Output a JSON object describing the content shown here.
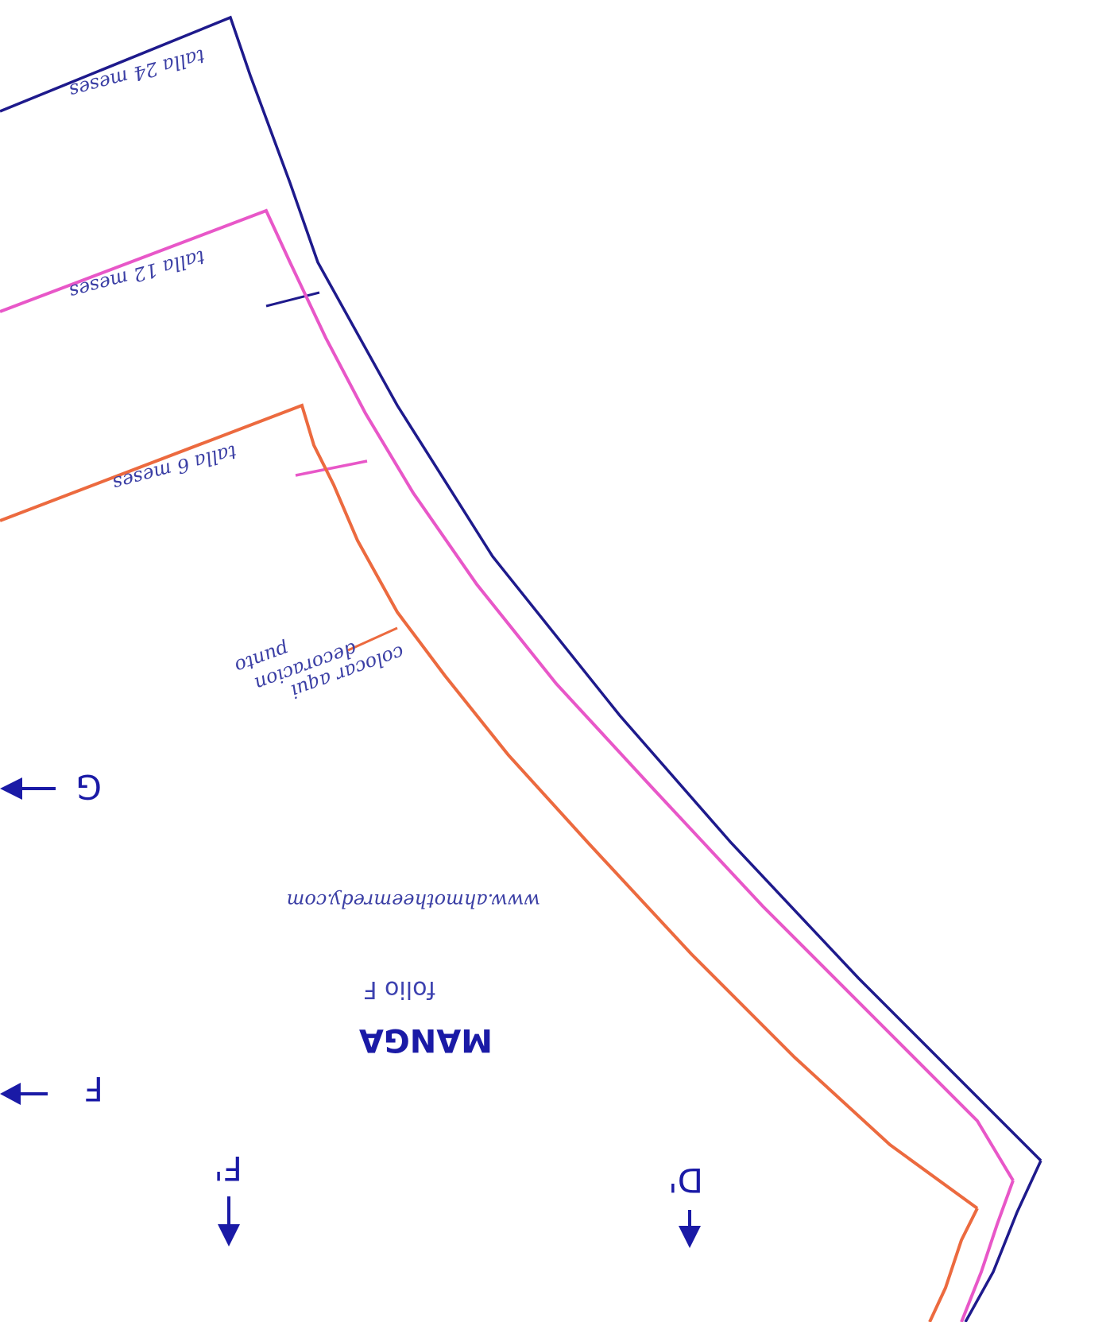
{
  "pattern": {
    "piece_name": "MANGA",
    "folio": "folio F",
    "website": "www.ahmotheemredy.com",
    "sizes": [
      {
        "label": "talla 24 meses",
        "color": "#1e1a8c"
      },
      {
        "label": "talla 12 meses",
        "color": "#e857c8"
      },
      {
        "label": "talla 6 meses",
        "color": "#ec6a3f"
      }
    ],
    "note": {
      "line1": "colocar aqui",
      "line2": "decoracion",
      "line3": "punto"
    },
    "markers": {
      "g": "G",
      "f": "F",
      "f_prime": "F'",
      "d_prime": "D'"
    }
  }
}
